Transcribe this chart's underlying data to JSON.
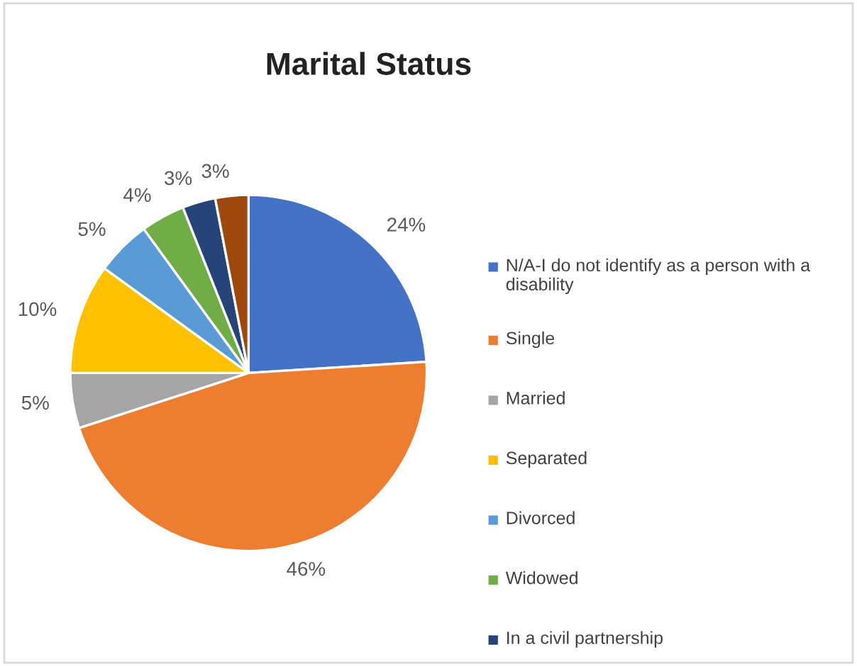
{
  "chart_data": {
    "type": "pie",
    "title": "Marital Status",
    "categories": [
      "N/A-I do not identify as a person with a disability",
      "Single",
      "Married",
      "Separated",
      "Divorced",
      "Widowed",
      "In a civil partnership",
      null
    ],
    "values": [
      24,
      46,
      5,
      10,
      5,
      4,
      3,
      3
    ],
    "colors": [
      "#4472c4",
      "#ed7d31",
      "#a5a5a5",
      "#ffc000",
      "#5b9bd5",
      "#70ad47",
      "#264478",
      "#9e480e"
    ],
    "value_labels": [
      "24%",
      "46%",
      "5%",
      "10%",
      "5%",
      "4%",
      "3%",
      "3%"
    ],
    "legend": "right"
  }
}
